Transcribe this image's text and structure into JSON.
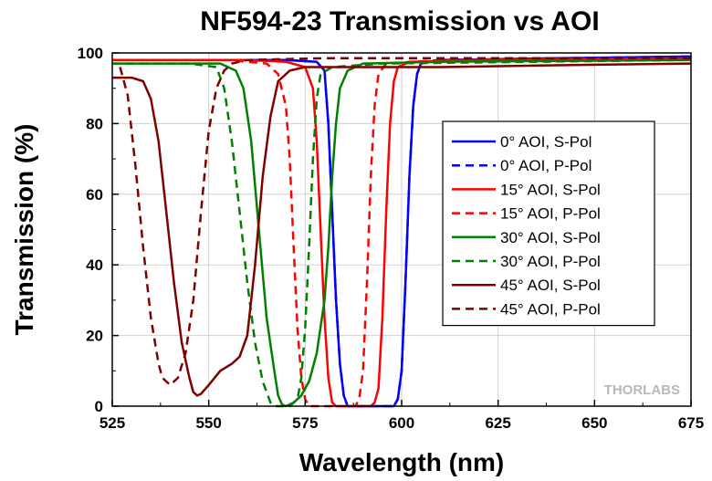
{
  "chart_data": {
    "type": "line",
    "title": "NF594-23 Transmission vs AOI",
    "xlabel": "Wavelength (nm)",
    "ylabel": "Transmission (%)",
    "xlim": [
      525,
      675
    ],
    "ylim": [
      0,
      100
    ],
    "xticks": [
      525,
      550,
      575,
      600,
      625,
      650,
      675
    ],
    "yticks": [
      0,
      20,
      40,
      60,
      80,
      100
    ],
    "grid": true,
    "legend_position": "right",
    "watermark": "THORLABS",
    "series": [
      {
        "name": "0° AOI, S-Pol",
        "color": "#0000ff",
        "dash": "solid",
        "points": [
          [
            525,
            98
          ],
          [
            540,
            98
          ],
          [
            555,
            98
          ],
          [
            570,
            98
          ],
          [
            578,
            97.5
          ],
          [
            580,
            95
          ],
          [
            581,
            80
          ],
          [
            582,
            55
          ],
          [
            583,
            30
          ],
          [
            584,
            12
          ],
          [
            585,
            3
          ],
          [
            586,
            0
          ],
          [
            598,
            0
          ],
          [
            599,
            2
          ],
          [
            600,
            10
          ],
          [
            601,
            35
          ],
          [
            602,
            65
          ],
          [
            603,
            85
          ],
          [
            604,
            94
          ],
          [
            605,
            97
          ],
          [
            610,
            98
          ],
          [
            640,
            98.5
          ],
          [
            675,
            99
          ]
        ]
      },
      {
        "name": "0° AOI, P-Pol",
        "color": "#0000ff",
        "dash": "dash",
        "points": [
          [
            525,
            98
          ],
          [
            540,
            98
          ],
          [
            555,
            98
          ],
          [
            570,
            98
          ],
          [
            578,
            97.5
          ],
          [
            580,
            95
          ],
          [
            581,
            80
          ],
          [
            582,
            55
          ],
          [
            583,
            30
          ],
          [
            584,
            12
          ],
          [
            585,
            3
          ],
          [
            586,
            0
          ],
          [
            598,
            0
          ],
          [
            599,
            2
          ],
          [
            600,
            10
          ],
          [
            601,
            35
          ],
          [
            602,
            65
          ],
          [
            603,
            85
          ],
          [
            604,
            94
          ],
          [
            605,
            97
          ],
          [
            610,
            98
          ],
          [
            640,
            98.5
          ],
          [
            675,
            99
          ]
        ]
      },
      {
        "name": "15° AOI, S-Pol",
        "color": "#ff0000",
        "dash": "solid",
        "points": [
          [
            525,
            98
          ],
          [
            540,
            98
          ],
          [
            560,
            98
          ],
          [
            570,
            97.5
          ],
          [
            575,
            96
          ],
          [
            577,
            90
          ],
          [
            578,
            75
          ],
          [
            579,
            50
          ],
          [
            580,
            25
          ],
          [
            581,
            8
          ],
          [
            582,
            1
          ],
          [
            583,
            0
          ],
          [
            592,
            0
          ],
          [
            593,
            1
          ],
          [
            594,
            5
          ],
          [
            595,
            25
          ],
          [
            596,
            55
          ],
          [
            597,
            80
          ],
          [
            598,
            92
          ],
          [
            599,
            96
          ],
          [
            602,
            97.5
          ],
          [
            620,
            98
          ],
          [
            675,
            98.5
          ]
        ]
      },
      {
        "name": "15° AOI, P-Pol",
        "color": "#ff0000",
        "dash": "dash",
        "points": [
          [
            525,
            98
          ],
          [
            540,
            98
          ],
          [
            555,
            98
          ],
          [
            565,
            97
          ],
          [
            568,
            94
          ],
          [
            570,
            85
          ],
          [
            571,
            70
          ],
          [
            572,
            45
          ],
          [
            573,
            22
          ],
          [
            574,
            8
          ],
          [
            575,
            2
          ],
          [
            576,
            0
          ],
          [
            588,
            0
          ],
          [
            589,
            2
          ],
          [
            590,
            10
          ],
          [
            591,
            35
          ],
          [
            592,
            65
          ],
          [
            593,
            85
          ],
          [
            594,
            94
          ],
          [
            596,
            97
          ],
          [
            610,
            98
          ],
          [
            675,
            98.5
          ]
        ]
      },
      {
        "name": "30° AOI, S-Pol",
        "color": "#008000",
        "dash": "solid",
        "points": [
          [
            525,
            97
          ],
          [
            540,
            97
          ],
          [
            553,
            97
          ],
          [
            557,
            95
          ],
          [
            559,
            90
          ],
          [
            561,
            75
          ],
          [
            563,
            50
          ],
          [
            565,
            25
          ],
          [
            567,
            10
          ],
          [
            568,
            3
          ],
          [
            569,
            0.5
          ],
          [
            570,
            0
          ],
          [
            572,
            1
          ],
          [
            574,
            3
          ],
          [
            576,
            7
          ],
          [
            578,
            15
          ],
          [
            580,
            30
          ],
          [
            581,
            45
          ],
          [
            582,
            65
          ],
          [
            583,
            80
          ],
          [
            584,
            90
          ],
          [
            586,
            95
          ],
          [
            590,
            97
          ],
          [
            610,
            97.5
          ],
          [
            675,
            98
          ]
        ]
      },
      {
        "name": "30° AOI, P-Pol",
        "color": "#008000",
        "dash": "dash",
        "points": [
          [
            525,
            97
          ],
          [
            545,
            97
          ],
          [
            552,
            96
          ],
          [
            554,
            90
          ],
          [
            556,
            75
          ],
          [
            558,
            55
          ],
          [
            560,
            35
          ],
          [
            562,
            18
          ],
          [
            564,
            7
          ],
          [
            566,
            1
          ],
          [
            567,
            0
          ],
          [
            571,
            0
          ],
          [
            573,
            2
          ],
          [
            574,
            8
          ],
          [
            575,
            22
          ],
          [
            576,
            45
          ],
          [
            577,
            70
          ],
          [
            578,
            87
          ],
          [
            579,
            94
          ],
          [
            582,
            96
          ],
          [
            595,
            97
          ],
          [
            675,
            98
          ]
        ]
      },
      {
        "name": "45° AOI, S-Pol",
        "color": "#800000",
        "dash": "solid",
        "points": [
          [
            525,
            93
          ],
          [
            530,
            93
          ],
          [
            533,
            92
          ],
          [
            535,
            87
          ],
          [
            537,
            75
          ],
          [
            539,
            55
          ],
          [
            541,
            35
          ],
          [
            543,
            18
          ],
          [
            545,
            8
          ],
          [
            546,
            4
          ],
          [
            547,
            3
          ],
          [
            548,
            3.5
          ],
          [
            550,
            6
          ],
          [
            553,
            10
          ],
          [
            556,
            12
          ],
          [
            558,
            14
          ],
          [
            560,
            20
          ],
          [
            562,
            40
          ],
          [
            564,
            65
          ],
          [
            566,
            82
          ],
          [
            568,
            92
          ],
          [
            571,
            95
          ],
          [
            575,
            96
          ],
          [
            590,
            96
          ],
          [
            610,
            96
          ],
          [
            640,
            96.5
          ],
          [
            675,
            97
          ]
        ]
      },
      {
        "name": "45° AOI, P-Pol",
        "color": "#800000",
        "dash": "dash",
        "points": [
          [
            527,
            96
          ],
          [
            529,
            88
          ],
          [
            531,
            68
          ],
          [
            533,
            45
          ],
          [
            535,
            25
          ],
          [
            537,
            12
          ],
          [
            538,
            8
          ],
          [
            540,
            6
          ],
          [
            542,
            8
          ],
          [
            544,
            15
          ],
          [
            546,
            30
          ],
          [
            548,
            55
          ],
          [
            550,
            78
          ],
          [
            552,
            90
          ],
          [
            554,
            95
          ],
          [
            556,
            97
          ],
          [
            560,
            98
          ],
          [
            580,
            98.5
          ],
          [
            620,
            98.5
          ],
          [
            675,
            98.5
          ]
        ]
      }
    ]
  }
}
